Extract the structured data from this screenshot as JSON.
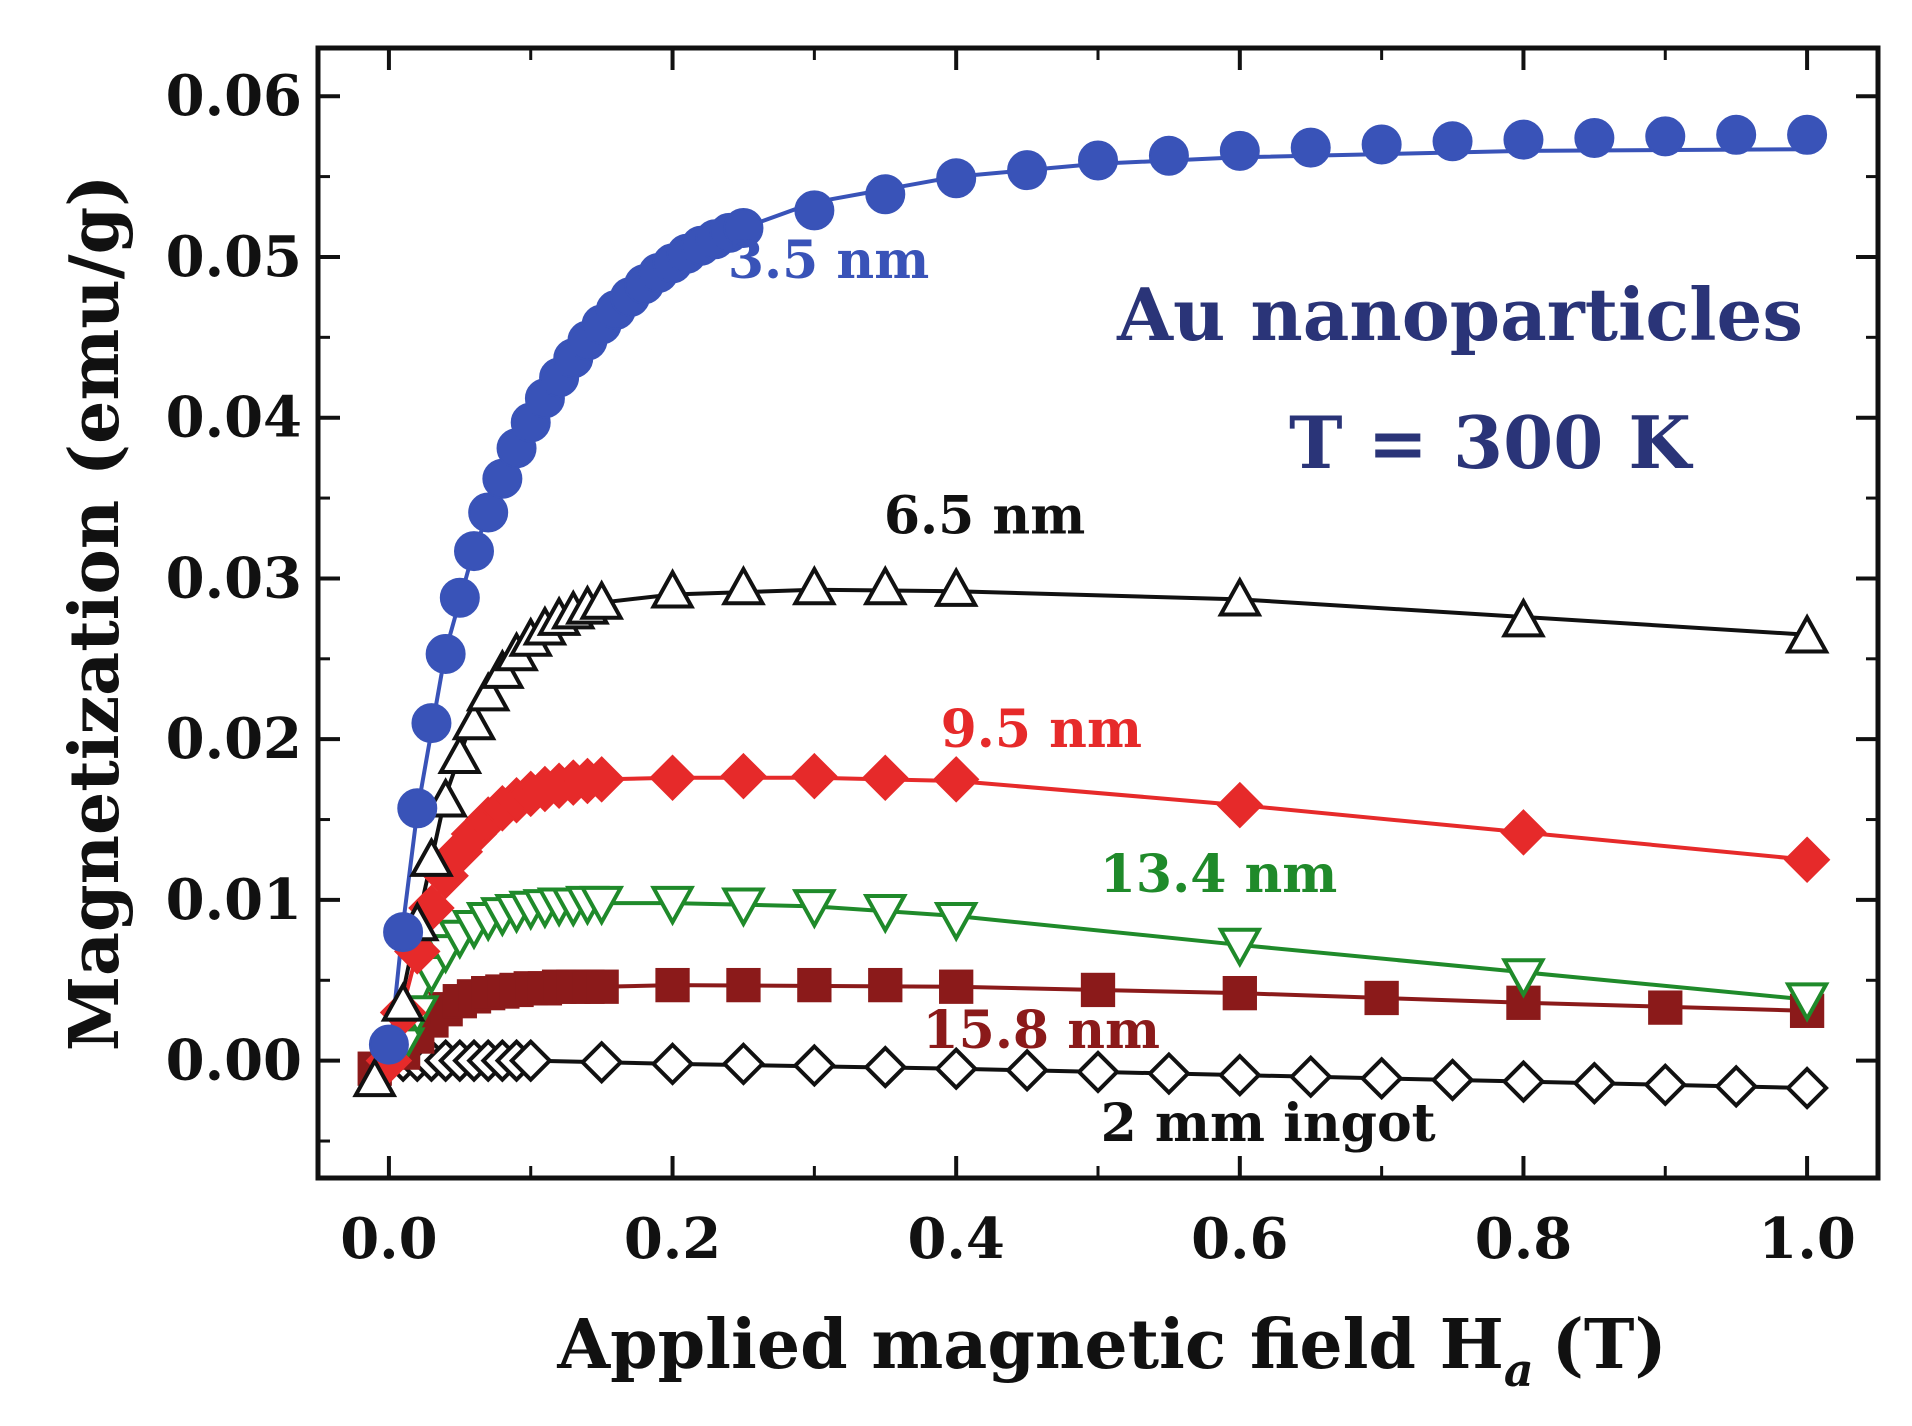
{
  "chart_data": {
    "type": "scatter",
    "xlabel": "Applied magnetic field H",
    "xlabel_subscript": "a",
    "xlabel_unit": "(T)",
    "ylabel": "Magnetization (emu/g)",
    "xlim": [
      -0.05,
      1.05
    ],
    "ylim": [
      -0.0073,
      0.063
    ],
    "x_ticks": [
      "0.0",
      "0.2",
      "0.4",
      "0.6",
      "0.8",
      "1.0"
    ],
    "y_ticks": [
      "0.00",
      "0.01",
      "0.02",
      "0.03",
      "0.04",
      "0.05",
      "0.06"
    ],
    "annotations": {
      "material": "Au nanoparticles",
      "temperature": "T = 300 K"
    },
    "series": [
      {
        "name": "3.5 nm",
        "color": "#3953b8",
        "marker": "circle-filled",
        "label_x": 0.31,
        "label_y": 0.0487,
        "x": [
          0.0,
          0.01,
          0.02,
          0.03,
          0.04,
          0.05,
          0.06,
          0.07,
          0.08,
          0.09,
          0.1,
          0.11,
          0.12,
          0.13,
          0.14,
          0.15,
          0.16,
          0.17,
          0.18,
          0.19,
          0.2,
          0.21,
          0.22,
          0.23,
          0.24,
          0.25,
          0.3,
          0.35,
          0.4,
          0.45,
          0.5,
          0.55,
          0.6,
          0.65,
          0.7,
          0.75,
          0.8,
          0.85,
          0.9,
          0.95,
          1.0
        ],
        "y": [
          0.001,
          0.008,
          0.0157,
          0.021,
          0.0253,
          0.0288,
          0.0317,
          0.0341,
          0.0362,
          0.0381,
          0.0397,
          0.0412,
          0.0425,
          0.0437,
          0.0448,
          0.0458,
          0.0467,
          0.0475,
          0.0483,
          0.049,
          0.0496,
          0.0502,
          0.0507,
          0.0511,
          0.0515,
          0.0518,
          0.0529,
          0.0539,
          0.0549,
          0.0554,
          0.056,
          0.0563,
          0.0566,
          0.0568,
          0.057,
          0.0572,
          0.0573,
          0.0574,
          0.0575,
          0.0576,
          0.0576
        ],
        "fit_x": [
          0.0,
          0.01,
          0.02,
          0.04,
          0.06,
          0.08,
          0.1,
          0.12,
          0.15,
          0.2,
          0.25,
          0.3,
          0.4,
          0.5,
          0.6,
          0.8,
          1.0
        ],
        "fit_y": [
          0.0,
          0.0085,
          0.0155,
          0.0255,
          0.0318,
          0.0362,
          0.0396,
          0.0423,
          0.0456,
          0.0494,
          0.0518,
          0.0534,
          0.055,
          0.0558,
          0.0562,
          0.0566,
          0.0567
        ]
      },
      {
        "name": "6.5 nm",
        "color": "#111111",
        "marker": "triangle-up-open",
        "label_x": 0.42,
        "label_y": 0.0328,
        "x": [
          -0.01,
          0.01,
          0.02,
          0.03,
          0.04,
          0.05,
          0.06,
          0.07,
          0.08,
          0.09,
          0.1,
          0.11,
          0.12,
          0.13,
          0.14,
          0.15,
          0.2,
          0.25,
          0.3,
          0.35,
          0.4,
          0.6,
          0.8,
          1.0
        ],
        "y": [
          -0.0012,
          0.0035,
          0.0085,
          0.0125,
          0.0162,
          0.0189,
          0.021,
          0.0228,
          0.0242,
          0.0253,
          0.0262,
          0.0269,
          0.0275,
          0.0279,
          0.0282,
          0.0285,
          0.0292,
          0.0294,
          0.0294,
          0.0294,
          0.0293,
          0.0287,
          0.0274,
          0.0264
        ],
        "fit_x": [
          -0.01,
          0.0,
          0.02,
          0.04,
          0.06,
          0.08,
          0.1,
          0.12,
          0.15,
          0.2,
          0.3,
          0.4,
          0.6,
          0.8,
          1.0
        ],
        "fit_y": [
          -0.001,
          0.0,
          0.0085,
          0.0165,
          0.0215,
          0.0246,
          0.0265,
          0.0276,
          0.0285,
          0.029,
          0.0293,
          0.0292,
          0.0287,
          0.0276,
          0.0265
        ]
      },
      {
        "name": "9.5 nm",
        "color": "#e62a2a",
        "marker": "diamond-filled",
        "label_x": 0.46,
        "label_y": 0.0195,
        "x": [
          0.0,
          0.01,
          0.02,
          0.03,
          0.04,
          0.05,
          0.06,
          0.07,
          0.08,
          0.09,
          0.1,
          0.11,
          0.12,
          0.13,
          0.14,
          0.15,
          0.2,
          0.25,
          0.3,
          0.35,
          0.4,
          0.6,
          0.8,
          1.0
        ],
        "y": [
          0.0,
          0.003,
          0.0068,
          0.0095,
          0.0115,
          0.013,
          0.0141,
          0.015,
          0.0157,
          0.0162,
          0.0166,
          0.0169,
          0.0171,
          0.0173,
          0.0174,
          0.0175,
          0.0176,
          0.0177,
          0.0177,
          0.0176,
          0.0175,
          0.0159,
          0.0142,
          0.0125
        ],
        "fit_x": [
          0.0,
          0.02,
          0.04,
          0.06,
          0.08,
          0.1,
          0.12,
          0.15,
          0.2,
          0.3,
          0.4,
          0.6,
          0.8,
          1.0
        ],
        "fit_y": [
          0.0,
          0.0068,
          0.0115,
          0.0141,
          0.0157,
          0.0166,
          0.0171,
          0.0175,
          0.0176,
          0.0176,
          0.0174,
          0.0159,
          0.0142,
          0.0125
        ]
      },
      {
        "name": "13.4 nm",
        "color": "#1f8a2a",
        "marker": "triangle-down-open",
        "label_x": 0.585,
        "label_y": 0.0105,
        "x": [
          0.01,
          0.02,
          0.03,
          0.04,
          0.05,
          0.06,
          0.07,
          0.08,
          0.09,
          0.1,
          0.11,
          0.12,
          0.13,
          0.14,
          0.15,
          0.2,
          0.25,
          0.3,
          0.35,
          0.4,
          0.6,
          0.8,
          1.0
        ],
        "y": [
          0.001,
          0.003,
          0.0055,
          0.0068,
          0.0077,
          0.0083,
          0.0088,
          0.0091,
          0.0093,
          0.0095,
          0.0096,
          0.0097,
          0.0097,
          0.0098,
          0.0098,
          0.0098,
          0.0097,
          0.0096,
          0.0093,
          0.0088,
          0.0072,
          0.0053,
          0.0038
        ],
        "fit_x": [
          0.0,
          0.02,
          0.04,
          0.06,
          0.08,
          0.1,
          0.12,
          0.15,
          0.2,
          0.3,
          0.4,
          0.6,
          0.8,
          1.0
        ],
        "fit_y": [
          0.0,
          0.003,
          0.0068,
          0.0083,
          0.0091,
          0.0095,
          0.0097,
          0.0098,
          0.0098,
          0.0096,
          0.009,
          0.0072,
          0.0055,
          0.0038
        ]
      },
      {
        "name": "15.8 nm",
        "color": "#8b1a1a",
        "marker": "square-filled",
        "label_x": 0.46,
        "label_y": 0.0008,
        "x": [
          -0.01,
          0.01,
          0.02,
          0.03,
          0.04,
          0.05,
          0.06,
          0.07,
          0.08,
          0.09,
          0.1,
          0.11,
          0.12,
          0.13,
          0.14,
          0.15,
          0.2,
          0.25,
          0.3,
          0.35,
          0.4,
          0.5,
          0.6,
          0.7,
          0.8,
          0.9,
          1.0
        ],
        "y": [
          -0.0005,
          0.0005,
          0.0015,
          0.0025,
          0.0032,
          0.0037,
          0.004,
          0.0042,
          0.0043,
          0.0044,
          0.0045,
          0.0045,
          0.0046,
          0.0046,
          0.0046,
          0.0046,
          0.0047,
          0.0047,
          0.0047,
          0.0047,
          0.0046,
          0.0044,
          0.0042,
          0.0039,
          0.0036,
          0.0033,
          0.0031
        ],
        "fit_x": [
          -0.01,
          0.0,
          0.02,
          0.04,
          0.06,
          0.08,
          0.1,
          0.15,
          0.2,
          0.4,
          0.6,
          0.8,
          1.0
        ],
        "fit_y": [
          -0.0005,
          0.0,
          0.0015,
          0.0032,
          0.004,
          0.0043,
          0.0045,
          0.0046,
          0.0047,
          0.0046,
          0.0042,
          0.0036,
          0.0031
        ],
        "label_fill": "#8b1a1a"
      },
      {
        "name": "2 mm ingot",
        "color": "#111111",
        "marker": "diamond-open",
        "label_x": 0.62,
        "label_y": -0.005,
        "x": [
          0.0,
          0.01,
          0.02,
          0.03,
          0.04,
          0.05,
          0.06,
          0.07,
          0.08,
          0.09,
          0.1,
          0.15,
          0.2,
          0.25,
          0.3,
          0.35,
          0.4,
          0.45,
          0.5,
          0.55,
          0.6,
          0.65,
          0.7,
          0.75,
          0.8,
          0.85,
          0.9,
          0.95,
          1.0
        ],
        "y": [
          0.0,
          0.0,
          0.0,
          0.0,
          0.0,
          0.0,
          0.0,
          0.0,
          0.0,
          0.0,
          0.0,
          -0.0001,
          -0.0002,
          -0.0002,
          -0.0003,
          -0.0004,
          -0.0005,
          -0.0006,
          -0.0007,
          -0.0008,
          -0.0009,
          -0.001,
          -0.0011,
          -0.0012,
          -0.0013,
          -0.0014,
          -0.0015,
          -0.0016,
          -0.0017
        ],
        "fit_x": [
          0.0,
          0.1,
          0.2,
          0.4,
          0.6,
          0.8,
          1.0
        ],
        "fit_y": [
          0.0,
          0.0,
          -0.0002,
          -0.0005,
          -0.0009,
          -0.0013,
          -0.0017
        ]
      }
    ]
  }
}
